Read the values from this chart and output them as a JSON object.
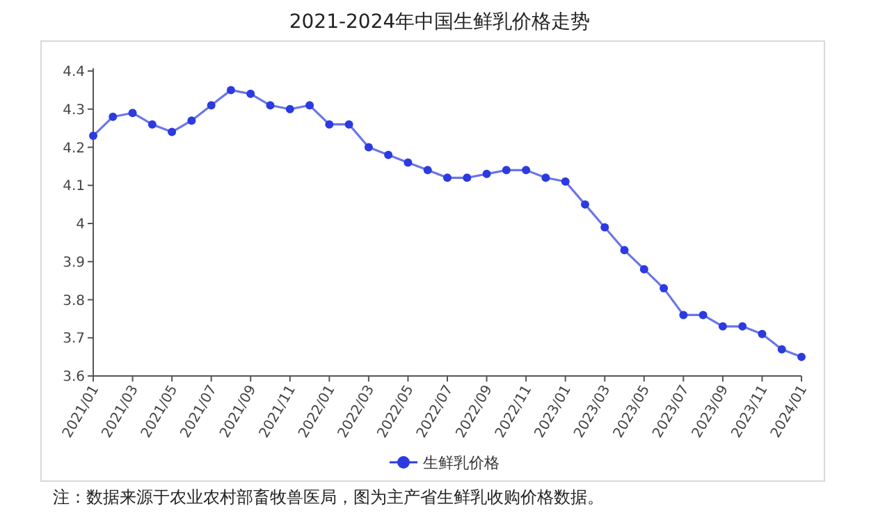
{
  "chart_data": {
    "type": "line",
    "title": "2021-2024年中国生鲜乳价格走势",
    "categories": [
      "2021/01",
      null,
      "2021/03",
      null,
      "2021/05",
      null,
      "2021/07",
      null,
      "2021/09",
      null,
      "2021/11",
      null,
      "2022/01",
      null,
      "2022/03",
      null,
      "2022/05",
      null,
      "2022/07",
      null,
      "2022/09",
      null,
      "2022/11",
      null,
      "2023/01",
      null,
      "2023/03",
      null,
      "2023/05",
      null,
      "2023/07",
      null,
      "2023/09",
      null,
      "2023/11",
      null,
      "2024/01"
    ],
    "series": [
      {
        "name": "生鲜乳价格",
        "color": "#2b3be0",
        "values": [
          4.23,
          4.28,
          4.29,
          4.26,
          4.24,
          4.27,
          4.31,
          4.35,
          4.34,
          4.31,
          4.3,
          4.31,
          4.26,
          4.26,
          4.2,
          4.18,
          4.16,
          4.14,
          4.12,
          4.12,
          4.13,
          4.14,
          4.14,
          4.12,
          4.11,
          4.05,
          3.99,
          3.93,
          3.88,
          3.83,
          3.76,
          3.76,
          3.73,
          3.73,
          3.71,
          3.67,
          3.65
        ]
      }
    ],
    "ylim": [
      3.6,
      4.4
    ],
    "yticks": [
      3.6,
      3.7,
      3.8,
      3.9,
      4,
      4.1,
      4.2,
      4.3,
      4.4
    ],
    "marker": "circle",
    "line_style": "solid",
    "grid": false,
    "legend": "bottom",
    "annotations": [
      "注：数据来源于农业农村部畜牧兽医局，图为主产省生鲜乳收购价格数据。"
    ]
  }
}
